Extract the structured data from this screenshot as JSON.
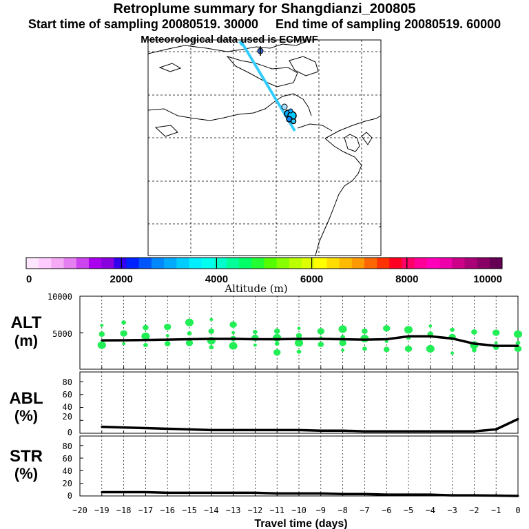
{
  "header": {
    "title": "Retroplume summary for Shangdianzi_200805",
    "subtitle": "Start time of sampling 20080519. 30000     End time of sampling 20080519. 60000",
    "met_note": "Meteorological data used is ECMWF"
  },
  "colorbar": {
    "label": "Altitude (m)",
    "ticks": [
      "0",
      "2000",
      "4000",
      "6000",
      "8000",
      "10000"
    ],
    "colors": [
      "#ffe6ff",
      "#ffccff",
      "#f5aaf5",
      "#e680f0",
      "#cc44ee",
      "#aa00ee",
      "#8800dd",
      "#3300ee",
      "#0022ff",
      "#0055ff",
      "#0088ff",
      "#00aaff",
      "#00ccff",
      "#00eeff",
      "#00ffee",
      "#00ffcc",
      "#00ff99",
      "#00ff66",
      "#22ff33",
      "#55ff00",
      "#88ff00",
      "#bbff00",
      "#ddff00",
      "#ffff00",
      "#ffdd00",
      "#ffbb00",
      "#ff9900",
      "#ff6600",
      "#ff3300",
      "#ff0022",
      "#ff0066",
      "#ff0099",
      "#ff00bb",
      "#ee00aa",
      "#cc0088",
      "#aa0077",
      "#880066",
      "#660055"
    ]
  },
  "panels": {
    "alt": {
      "label1": "ALT",
      "label2": "(m)",
      "yticks": [
        "5000",
        "10000"
      ]
    },
    "abl": {
      "label1": "ABL",
      "label2": "(%)",
      "yticks": [
        "0",
        "20",
        "40",
        "60",
        "80"
      ]
    },
    "str": {
      "label1": "STR",
      "label2": "(%)",
      "yticks": [
        "0",
        "20",
        "40",
        "60",
        "80"
      ]
    }
  },
  "xaxis": {
    "label": "Travel time (days)",
    "ticks": [
      "−20",
      "−19",
      "−18",
      "−17",
      "−16",
      "−15",
      "−14",
      "−13",
      "−12",
      "−11",
      "−10",
      "−9",
      "−8",
      "−7",
      "−6",
      "−5",
      "−4",
      "−3",
      "−2",
      "−1",
      "0"
    ]
  },
  "chart_data": [
    {
      "type": "line",
      "title": "ALT (m)",
      "xlabel": "Travel time (days)",
      "ylabel": "ALT (m)",
      "xlim": [
        -20,
        0
      ],
      "ylim": [
        0,
        10000
      ],
      "x": [
        -19,
        -18,
        -17,
        -16,
        -15,
        -14,
        -13,
        -12,
        -11,
        -10,
        -9,
        -8,
        -7,
        -6,
        -5,
        -4,
        -3,
        -2,
        -1,
        0
      ],
      "values": [
        3950,
        3960,
        4000,
        4050,
        4100,
        4150,
        4150,
        4100,
        4100,
        4150,
        4150,
        4100,
        4050,
        4100,
        4500,
        4500,
        4200,
        3500,
        3200,
        3200
      ],
      "scatter_color": "#22ee55",
      "scatter": [
        [
          -19,
          6000
        ],
        [
          -19,
          4800
        ],
        [
          -19,
          3300
        ],
        [
          -18,
          6400
        ],
        [
          -18,
          4900
        ],
        [
          -18,
          3500
        ],
        [
          -17,
          5700
        ],
        [
          -17,
          4500
        ],
        [
          -17,
          3300
        ],
        [
          -16,
          5800
        ],
        [
          -16,
          4600
        ],
        [
          -16,
          3500
        ],
        [
          -15,
          6400
        ],
        [
          -15,
          4900
        ],
        [
          -15,
          3600
        ],
        [
          -14,
          6800
        ],
        [
          -14,
          5200
        ],
        [
          -14,
          3900
        ],
        [
          -14,
          3000
        ],
        [
          -13,
          6100
        ],
        [
          -13,
          5000
        ],
        [
          -13,
          4200
        ],
        [
          -13,
          3200
        ],
        [
          -12,
          5100
        ],
        [
          -12,
          4300
        ],
        [
          -12,
          3300
        ],
        [
          -11,
          5200
        ],
        [
          -11,
          4300
        ],
        [
          -11,
          3500
        ],
        [
          -11,
          2300
        ],
        [
          -10,
          5600
        ],
        [
          -10,
          4600
        ],
        [
          -10,
          3600
        ],
        [
          -10,
          2400
        ],
        [
          -9,
          5200
        ],
        [
          -9,
          4300
        ],
        [
          -9,
          3400
        ],
        [
          -8,
          5500
        ],
        [
          -8,
          4400
        ],
        [
          -8,
          3600
        ],
        [
          -8,
          2600
        ],
        [
          -7,
          5200
        ],
        [
          -7,
          4200
        ],
        [
          -7,
          2800
        ],
        [
          -6,
          5600
        ],
        [
          -6,
          3800
        ],
        [
          -6,
          2700
        ],
        [
          -5,
          5400
        ],
        [
          -5,
          4300
        ],
        [
          -5,
          2800
        ],
        [
          -4,
          5900
        ],
        [
          -4,
          4800
        ],
        [
          -4,
          2800
        ],
        [
          -3,
          5400
        ],
        [
          -3,
          4400
        ],
        [
          -3,
          2200
        ],
        [
          -2,
          5100
        ],
        [
          -2,
          3300
        ],
        [
          -2,
          2600
        ],
        [
          -1,
          5000
        ],
        [
          -1,
          3600
        ],
        [
          -1,
          3000
        ],
        [
          0,
          4800
        ],
        [
          0,
          3600
        ],
        [
          0,
          2800
        ]
      ]
    },
    {
      "type": "line",
      "title": "ABL (%)",
      "xlabel": "Travel time (days)",
      "ylabel": "ABL (%)",
      "xlim": [
        -20,
        0
      ],
      "ylim": [
        0,
        95
      ],
      "x": [
        -19,
        -18,
        -17,
        -16,
        -15,
        -14,
        -13,
        -12,
        -11,
        -10,
        -9,
        -8,
        -7,
        -6,
        -5,
        -4,
        -3,
        -2,
        -1,
        0
      ],
      "values": [
        10,
        9,
        8,
        7,
        6,
        5,
        5,
        5,
        5,
        5,
        4,
        4,
        3,
        3,
        3,
        3,
        3,
        3,
        6,
        22
      ]
    },
    {
      "type": "line",
      "title": "STR (%)",
      "xlabel": "Travel time (days)",
      "ylabel": "STR (%)",
      "xlim": [
        -20,
        0
      ],
      "ylim": [
        0,
        95
      ],
      "x": [
        -19,
        -18,
        -17,
        -16,
        -15,
        -14,
        -13,
        -12,
        -11,
        -10,
        -9,
        -8,
        -7,
        -6,
        -5,
        -4,
        -3,
        -2,
        -1,
        0
      ],
      "values": [
        6,
        6,
        6,
        5,
        5,
        5,
        5,
        5,
        4,
        4,
        4,
        3,
        3,
        2,
        2,
        2,
        1,
        1,
        0.5,
        0
      ]
    }
  ]
}
